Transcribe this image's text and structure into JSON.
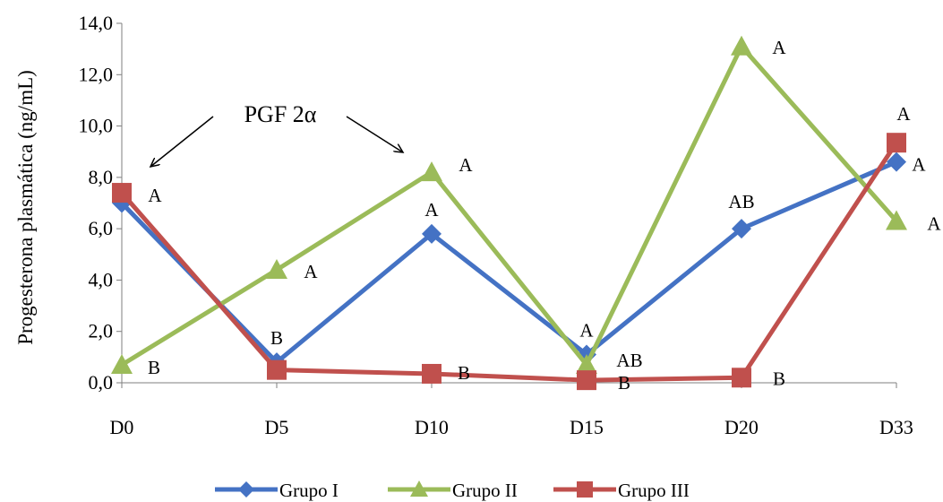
{
  "chart_data": {
    "type": "line",
    "title": "",
    "xlabel": "",
    "ylabel": "Progesterona plasmática (ng/mL)",
    "ylim": [
      0,
      14
    ],
    "ytick_step": 2,
    "yticks": [
      "0,0",
      "2,0",
      "4,0",
      "6,0",
      "8,0",
      "10,0",
      "12,0",
      "14,0"
    ],
    "categories": [
      "D0",
      "D5",
      "D10",
      "D15",
      "D20",
      "D33"
    ],
    "grid": false,
    "legend_position": "bottom",
    "series": [
      {
        "name": "Grupo I",
        "color": "#4472C4",
        "marker": "diamond",
        "values": [
          7.0,
          0.8,
          5.8,
          1.1,
          6.0,
          8.6
        ],
        "labels": [
          "",
          "B",
          "A",
          "A",
          "AB",
          "A"
        ]
      },
      {
        "name": "Grupo II",
        "color": "#9BBB59",
        "marker": "triangle",
        "values": [
          0.7,
          4.4,
          8.2,
          0.7,
          13.1,
          6.3
        ],
        "labels": [
          "B",
          "A",
          "A",
          "AB",
          "A",
          "A"
        ]
      },
      {
        "name": "Grupo III",
        "color": "#C0504D",
        "marker": "square",
        "values": [
          7.4,
          0.5,
          0.35,
          0.1,
          0.2,
          9.35
        ],
        "labels": [
          "A",
          "",
          "B",
          "B",
          "B",
          "A"
        ]
      }
    ],
    "annotations": [
      {
        "text": "PGF 2α",
        "arrows_to": [
          "D0",
          "D10"
        ]
      }
    ]
  }
}
